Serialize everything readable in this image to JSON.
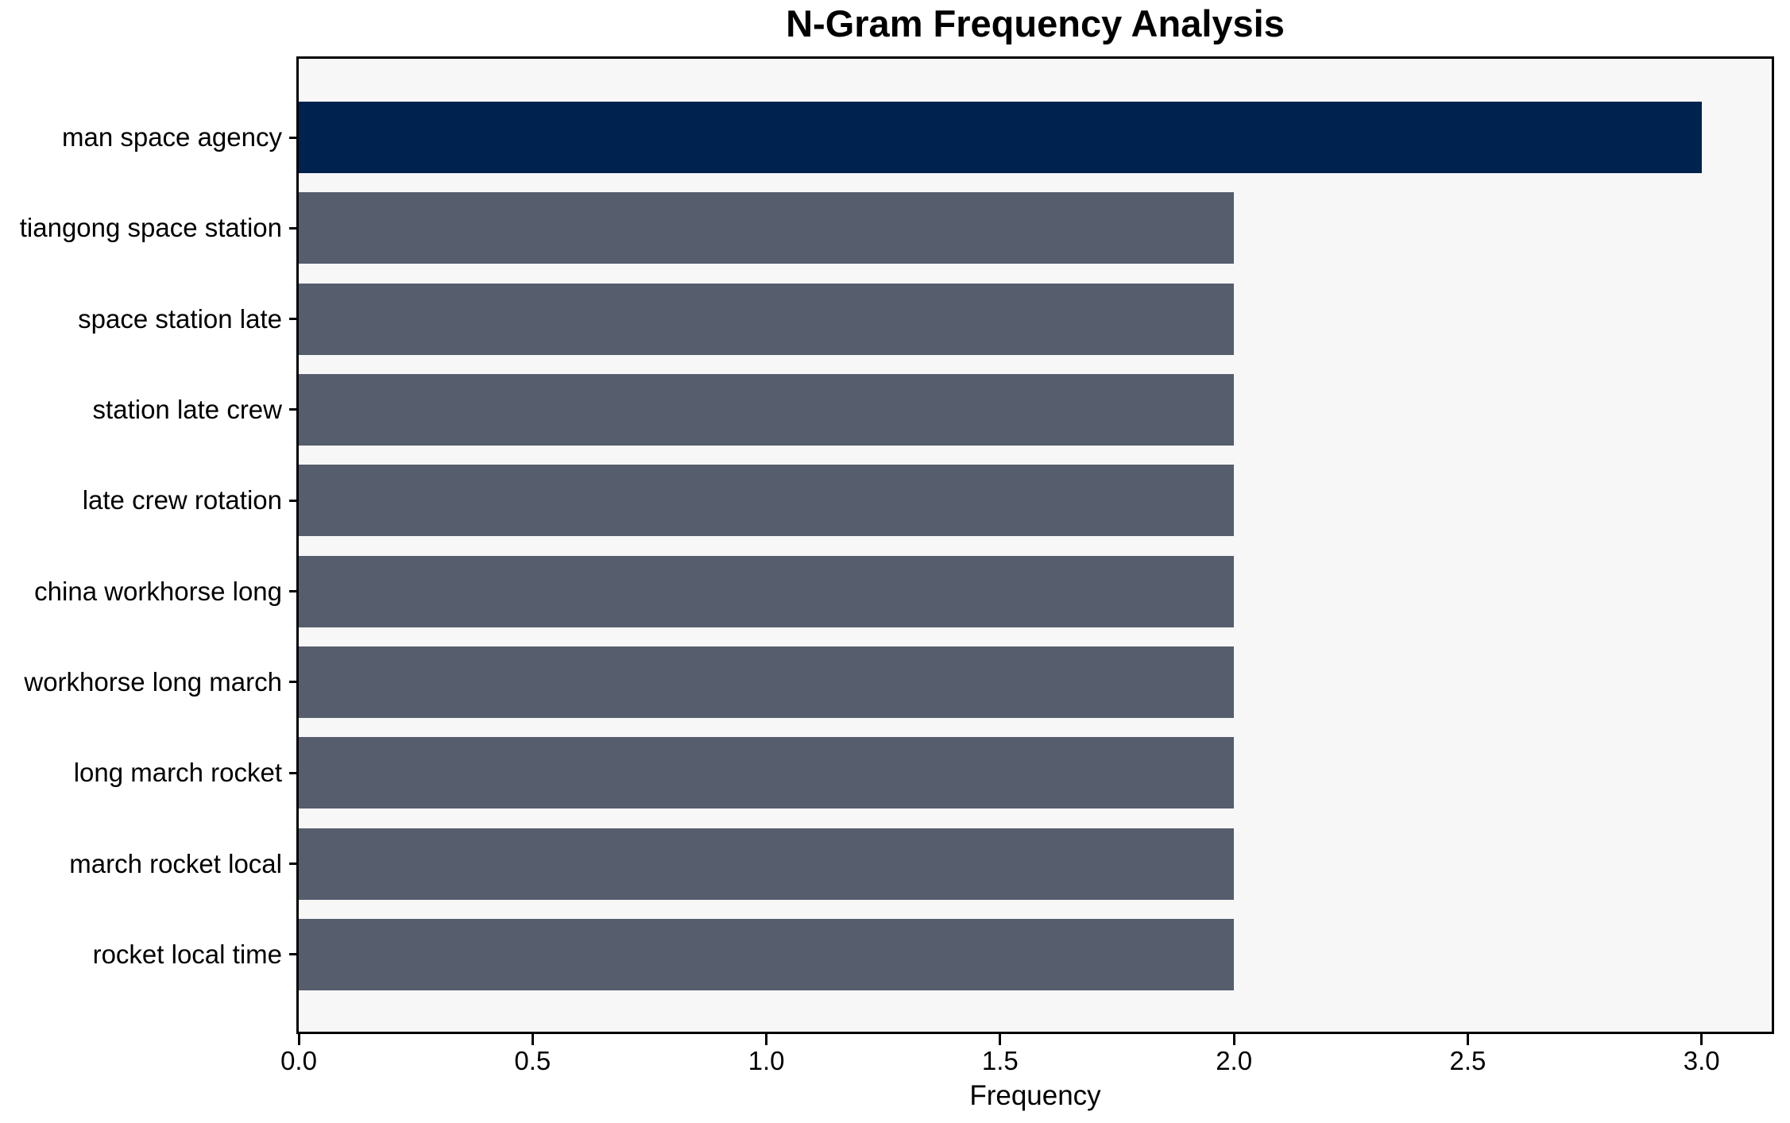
{
  "chart_data": {
    "type": "bar",
    "orientation": "horizontal",
    "title": "N-Gram Frequency Analysis",
    "xlabel": "Frequency",
    "ylabel": "",
    "categories": [
      "man space agency",
      "tiangong space station",
      "space station late",
      "station late crew",
      "late crew rotation",
      "china workhorse long",
      "workhorse long march",
      "long march rocket",
      "march rocket local",
      "rocket local time"
    ],
    "values": [
      3,
      2,
      2,
      2,
      2,
      2,
      2,
      2,
      2,
      2
    ],
    "xlim": [
      0,
      3.15
    ],
    "xticks": [
      0.0,
      0.5,
      1.0,
      1.5,
      2.0,
      2.5,
      3.0
    ],
    "xtick_labels": [
      "0.0",
      "0.5",
      "1.0",
      "1.5",
      "2.0",
      "2.5",
      "3.0"
    ],
    "highlight_index": 0,
    "colors": {
      "highlight_bar": "#00224e",
      "default_bar": "#565d6d",
      "plot_background": "#f7f7f7",
      "figure_background": "#ffffff",
      "spine": "#000000",
      "text": "#000000"
    },
    "grid": false,
    "legend": false
  }
}
